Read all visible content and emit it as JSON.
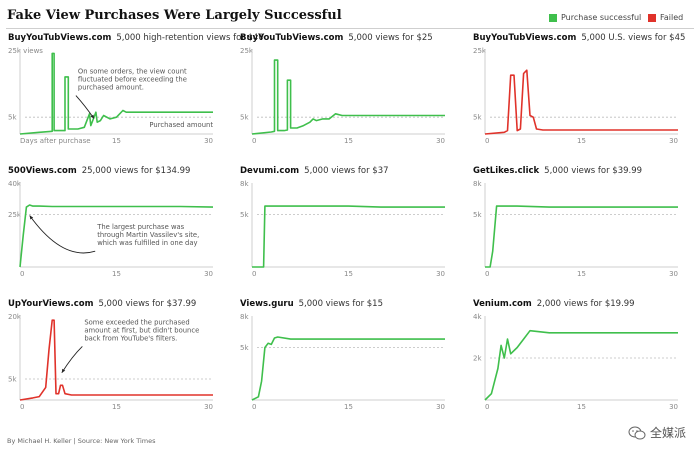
{
  "header": {
    "title": "Fake View Purchases Were Largely Successful",
    "legend": [
      {
        "label": "Purchase successful",
        "color": "#3fbf4c"
      },
      {
        "label": "Failed",
        "color": "#e0322a"
      }
    ]
  },
  "footer": {
    "credit": "By Michael H. Keller | Source: New York Times"
  },
  "watermark": {
    "text": "全媒派",
    "icon": "wechat-icon"
  },
  "chart_data": [
    {
      "type": "line",
      "site": "BuyYouTubViews.com",
      "subtitle": "5,000 high-retention views for $40",
      "status": "success",
      "color": "#3fbf4c",
      "ylim": [
        0,
        25000
      ],
      "xlim": [
        0,
        30
      ],
      "target_line": 5000,
      "y_tick_labels": [
        "25k views",
        "5k"
      ],
      "x_ticks": [
        15,
        30
      ],
      "x_tick_labels": [
        "15",
        "30"
      ],
      "x_start_label": "Days after purchase",
      "target_label": "Purchased amount",
      "annotation": {
        "text": [
          "On some orders, the view count",
          "fluctuated before exceeding the",
          "purchased amount."
        ],
        "x": 9,
        "y": 18000,
        "arrow_to": [
          11.5,
          4600
        ]
      },
      "x": [
        0,
        3,
        5,
        5,
        5.3,
        5.3,
        6,
        7,
        7,
        7.5,
        7.5,
        8,
        9,
        10,
        10.8,
        11,
        11.8,
        12,
        12.5,
        13,
        14,
        15,
        16,
        16.5,
        18,
        20,
        22,
        25,
        28,
        30
      ],
      "values": [
        0,
        500,
        800,
        24000,
        24000,
        1000,
        1000,
        1000,
        17000,
        17000,
        1500,
        1500,
        1500,
        2000,
        6000,
        2500,
        6500,
        3500,
        4000,
        5500,
        4500,
        5000,
        7000,
        6500,
        6500,
        6500,
        6500,
        6500,
        6500,
        6500
      ]
    },
    {
      "type": "line",
      "site": "BuyYouTubViews.com",
      "subtitle": "5,000 views for $25",
      "status": "success",
      "color": "#3fbf4c",
      "ylim": [
        0,
        25000
      ],
      "xlim": [
        0,
        30
      ],
      "target_line": 5000,
      "y_tick_labels": [
        "25k",
        "5k"
      ],
      "x_ticks": [
        0,
        15,
        30
      ],
      "x_tick_labels": [
        "0",
        "15",
        "30"
      ],
      "x": [
        0,
        3,
        3.5,
        3.5,
        4,
        4,
        5,
        5.5,
        5.5,
        6,
        6,
        7,
        8,
        9,
        9.5,
        10,
        11,
        12,
        13,
        14,
        15,
        17,
        20,
        25,
        30
      ],
      "values": [
        0,
        600,
        800,
        22000,
        22000,
        1000,
        1000,
        1200,
        16000,
        16000,
        1800,
        1800,
        2500,
        3500,
        4500,
        4000,
        4500,
        4500,
        6000,
        5500,
        5500,
        5500,
        5500,
        5500,
        5500
      ]
    },
    {
      "type": "line",
      "site": "BuyYouTubViews.com",
      "subtitle": "5,000 U.S. views for $45",
      "status": "failed",
      "color": "#e0322a",
      "ylim": [
        0,
        25000
      ],
      "xlim": [
        0,
        30
      ],
      "target_line": 5000,
      "y_tick_labels": [
        "25k",
        "5k"
      ],
      "x_ticks": [
        0,
        15,
        30
      ],
      "x_tick_labels": [
        "0",
        "15",
        "30"
      ],
      "x": [
        0,
        3,
        3.5,
        4,
        4.5,
        5,
        5.5,
        6,
        6.5,
        7,
        7.5,
        8,
        9,
        12,
        15,
        20,
        25,
        30
      ],
      "values": [
        0,
        500,
        1000,
        17500,
        17500,
        1000,
        1500,
        18000,
        19000,
        5500,
        5000,
        1500,
        1200,
        1200,
        1200,
        1200,
        1200,
        1200
      ]
    },
    {
      "type": "line",
      "site": "500Views.com",
      "subtitle": "25,000 views for $134.99",
      "status": "success",
      "color": "#3fbf4c",
      "ylim": [
        0,
        40000
      ],
      "xlim": [
        0,
        30
      ],
      "target_line": 25000,
      "y_tick_labels": [
        "40k",
        "25k"
      ],
      "x_ticks": [
        0,
        15,
        30
      ],
      "x_tick_labels": [
        "0",
        "15",
        "30"
      ],
      "annotation": {
        "text": [
          "The largest purchase was",
          "through Martin Vassilev's site,",
          "which was fulfilled in one day"
        ],
        "x": 12,
        "y": 18000,
        "arrow_to": [
          1.5,
          24500
        ]
      },
      "x": [
        0,
        0.5,
        1,
        1.5,
        2,
        3,
        5,
        10,
        15,
        20,
        25,
        30
      ],
      "values": [
        0,
        15000,
        28500,
        29500,
        29000,
        29000,
        28800,
        28800,
        28800,
        28800,
        28800,
        28500
      ]
    },
    {
      "type": "line",
      "site": "Devumi.com",
      "subtitle": "5,000 views for $37",
      "status": "success",
      "color": "#3fbf4c",
      "ylim": [
        0,
        8000
      ],
      "xlim": [
        0,
        30
      ],
      "target_line": 5000,
      "y_tick_labels": [
        "8k",
        "5k"
      ],
      "x_ticks": [
        0,
        15,
        30
      ],
      "x_tick_labels": [
        "0",
        "15",
        "30"
      ],
      "x": [
        0,
        1.8,
        2,
        2.3,
        4,
        10,
        15,
        20,
        25,
        30
      ],
      "values": [
        0,
        0,
        5800,
        5800,
        5800,
        5800,
        5800,
        5700,
        5700,
        5700
      ]
    },
    {
      "type": "line",
      "site": "GetLikes.click",
      "subtitle": "5,000 views for $39.99",
      "status": "success",
      "color": "#3fbf4c",
      "ylim": [
        0,
        8000
      ],
      "xlim": [
        0,
        30
      ],
      "target_line": 5000,
      "y_tick_labels": [
        "8k",
        "5k"
      ],
      "x_ticks": [
        0,
        15,
        30
      ],
      "x_tick_labels": [
        "0",
        "15",
        "30"
      ],
      "x": [
        0,
        0.8,
        1.2,
        1.8,
        3,
        5,
        10,
        15,
        20,
        25,
        30
      ],
      "values": [
        0,
        0,
        1500,
        5800,
        5800,
        5800,
        5700,
        5700,
        5700,
        5700,
        5700
      ]
    },
    {
      "type": "line",
      "site": "UpYourViews.com",
      "subtitle": "5,000 views for $37.99",
      "status": "failed",
      "color": "#e0322a",
      "ylim": [
        0,
        20000
      ],
      "xlim": [
        0,
        30
      ],
      "target_line": 5000,
      "y_tick_labels": [
        "20k",
        "5k"
      ],
      "x_ticks": [
        0,
        15,
        30
      ],
      "x_tick_labels": [
        "0",
        "15",
        "30"
      ],
      "annotation": {
        "text": [
          "Some exceeded the purchased",
          "amount at first, but didn't bounce",
          "back from YouTube's filters."
        ],
        "x": 10,
        "y": 18000,
        "arrow_to": [
          6.5,
          6500
        ]
      },
      "x": [
        0,
        2,
        3,
        4,
        4.5,
        5,
        5.3,
        5.6,
        6,
        6.3,
        6.6,
        7,
        8,
        10,
        15,
        20,
        25,
        30
      ],
      "values": [
        0,
        500,
        800,
        3000,
        12000,
        19000,
        19000,
        1500,
        1500,
        3500,
        3500,
        1500,
        1200,
        1200,
        1200,
        1200,
        1200,
        1200
      ]
    },
    {
      "type": "line",
      "site": "Views.guru",
      "subtitle": "5,000 views for $15",
      "status": "success",
      "color": "#3fbf4c",
      "ylim": [
        0,
        8000
      ],
      "xlim": [
        0,
        30
      ],
      "target_line": 5000,
      "y_tick_labels": [
        "8k",
        "5k"
      ],
      "x_ticks": [
        0,
        15,
        30
      ],
      "x_tick_labels": [
        "0",
        "15",
        "30"
      ],
      "x": [
        0,
        1,
        1.5,
        2,
        2.5,
        3,
        3.5,
        4,
        6,
        10,
        15,
        20,
        25,
        30
      ],
      "values": [
        0,
        300,
        1800,
        5000,
        5400,
        5300,
        5900,
        6000,
        5800,
        5800,
        5800,
        5800,
        5800,
        5800
      ]
    },
    {
      "type": "line",
      "site": "Venium.com",
      "subtitle": "2,000 views for $19.99",
      "status": "success",
      "color": "#3fbf4c",
      "ylim": [
        0,
        4000
      ],
      "xlim": [
        0,
        30
      ],
      "target_line": 2000,
      "y_tick_labels": [
        "4k",
        "2k"
      ],
      "x_ticks": [
        0,
        15,
        30
      ],
      "x_tick_labels": [
        "0",
        "15",
        "30"
      ],
      "x": [
        0,
        1,
        2,
        2.5,
        3,
        3.5,
        4,
        5,
        6,
        7,
        10,
        15,
        20,
        25,
        30
      ],
      "values": [
        0,
        300,
        1500,
        2600,
        2000,
        2900,
        2200,
        2500,
        2900,
        3300,
        3200,
        3200,
        3200,
        3200,
        3200
      ]
    }
  ]
}
